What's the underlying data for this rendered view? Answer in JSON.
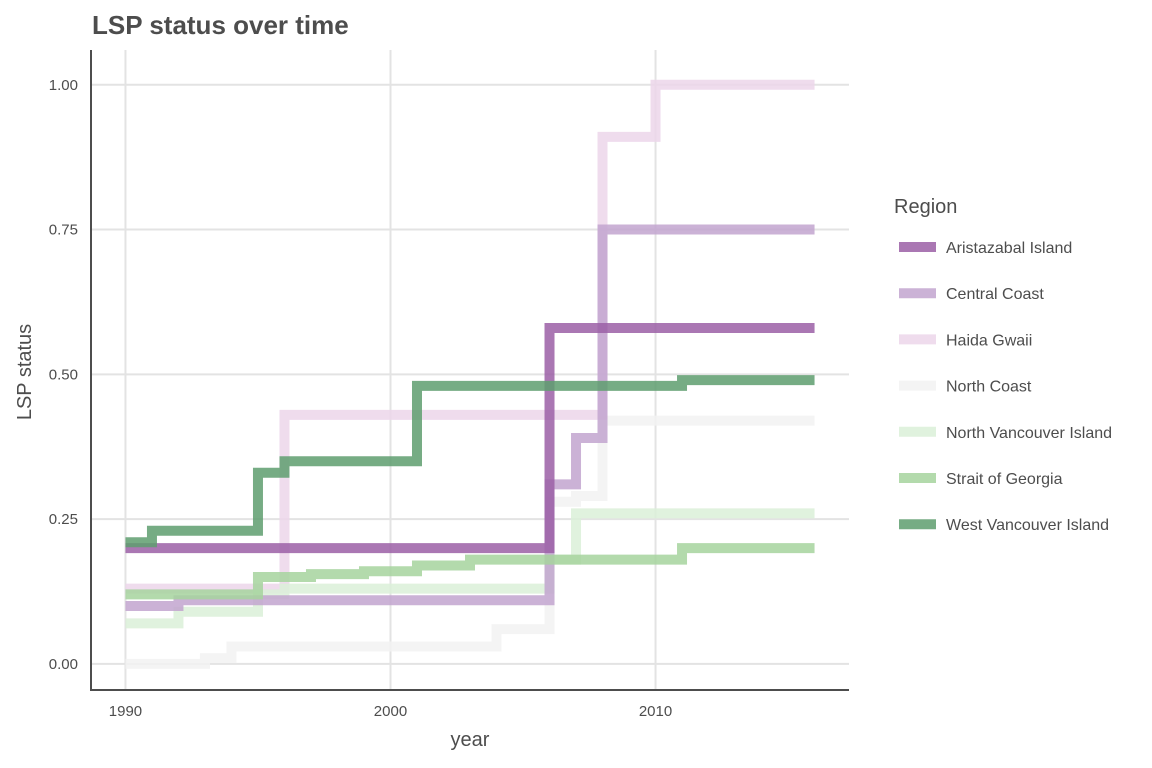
{
  "chart_data": {
    "type": "line",
    "step": true,
    "title": "LSP status over time",
    "xlabel": "year",
    "ylabel": "LSP status",
    "xlim": [
      1988.7,
      2017.3
    ],
    "ylim": [
      -0.045,
      1.06
    ],
    "x_ticks": [
      1990,
      2000,
      2010
    ],
    "x_tick_labels": [
      "1990",
      "2000",
      "2010"
    ],
    "y_ticks": [
      0,
      0.25,
      0.5,
      0.75,
      1.0
    ],
    "y_tick_labels": [
      "0.00",
      "0.25",
      "0.50",
      "0.75",
      "1.00"
    ],
    "grid": true,
    "legend_title": "Region",
    "legend_position": "right",
    "x": [
      1990,
      1991,
      1992,
      1993,
      1994,
      1995,
      1996,
      1997,
      1998,
      1999,
      2000,
      2001,
      2002,
      2003,
      2004,
      2005,
      2006,
      2007,
      2008,
      2009,
      2010,
      2011,
      2012,
      2013,
      2014,
      2015,
      2016
    ],
    "series": [
      {
        "name": "North Coast",
        "color": "#f2f2f2",
        "values": [
          0.0,
          0.0,
          0.0,
          0.01,
          0.03,
          0.03,
          0.03,
          0.03,
          0.03,
          0.03,
          0.03,
          0.03,
          0.03,
          0.03,
          0.06,
          0.06,
          0.28,
          0.29,
          0.42,
          0.42,
          0.42,
          0.42,
          0.42,
          0.42,
          0.42,
          0.42,
          0.42
        ]
      },
      {
        "name": "Haida Gwaii",
        "color": "#ecd6ea",
        "values": [
          0.13,
          0.13,
          0.13,
          0.13,
          0.13,
          0.13,
          0.43,
          0.43,
          0.43,
          0.43,
          0.43,
          0.43,
          0.43,
          0.43,
          0.43,
          0.43,
          0.43,
          0.43,
          0.91,
          0.91,
          1.0,
          1.0,
          1.0,
          1.0,
          1.0,
          1.0,
          1.0
        ]
      },
      {
        "name": "North Vancouver Island",
        "color": "#dbf0d8",
        "values": [
          0.07,
          0.07,
          0.09,
          0.09,
          0.09,
          0.12,
          0.13,
          0.13,
          0.13,
          0.13,
          0.13,
          0.13,
          0.13,
          0.13,
          0.13,
          0.13,
          0.18,
          0.26,
          0.26,
          0.26,
          0.26,
          0.26,
          0.26,
          0.26,
          0.26,
          0.26,
          0.26
        ]
      },
      {
        "name": "Central Coast",
        "color": "#c2a5cf",
        "values": [
          0.1,
          0.1,
          0.11,
          0.11,
          0.11,
          0.11,
          0.11,
          0.11,
          0.11,
          0.11,
          0.11,
          0.11,
          0.11,
          0.11,
          0.11,
          0.11,
          0.31,
          0.39,
          0.75,
          0.75,
          0.75,
          0.75,
          0.75,
          0.75,
          0.75,
          0.75,
          0.75
        ]
      },
      {
        "name": "Strait of Georgia",
        "color": "#a6d39e",
        "values": [
          0.12,
          0.12,
          0.12,
          0.12,
          0.12,
          0.15,
          0.15,
          0.155,
          0.155,
          0.16,
          0.16,
          0.17,
          0.17,
          0.18,
          0.18,
          0.18,
          0.18,
          0.18,
          0.18,
          0.18,
          0.18,
          0.2,
          0.2,
          0.2,
          0.2,
          0.2,
          0.2
        ]
      },
      {
        "name": "Aristazabal Island",
        "color": "#9b5fa6",
        "values": [
          0.2,
          0.2,
          0.2,
          0.2,
          0.2,
          0.2,
          0.2,
          0.2,
          0.2,
          0.2,
          0.2,
          0.2,
          0.2,
          0.2,
          0.2,
          0.2,
          0.58,
          0.58,
          0.58,
          0.58,
          0.58,
          0.58,
          0.58,
          0.58,
          0.58,
          0.58,
          0.58
        ]
      },
      {
        "name": "West Vancouver Island",
        "color": "#5e9e6e",
        "values": [
          0.21,
          0.23,
          0.23,
          0.23,
          0.23,
          0.33,
          0.35,
          0.35,
          0.35,
          0.35,
          0.35,
          0.48,
          0.48,
          0.48,
          0.48,
          0.48,
          0.48,
          0.48,
          0.48,
          0.48,
          0.48,
          0.49,
          0.49,
          0.49,
          0.49,
          0.49,
          0.49
        ]
      }
    ],
    "legend_order": [
      "Aristazabal Island",
      "Central Coast",
      "Haida Gwaii",
      "North Coast",
      "North Vancouver Island",
      "Strait of Georgia",
      "West Vancouver Island"
    ]
  }
}
